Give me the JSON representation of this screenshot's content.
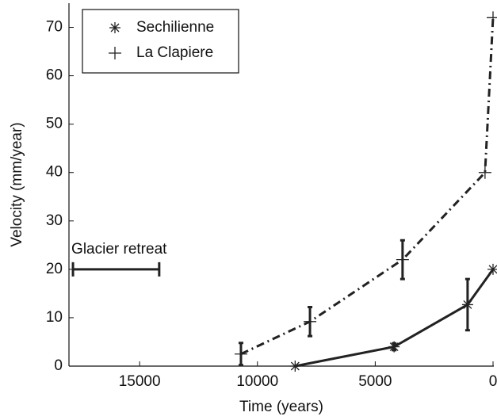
{
  "chart_data": {
    "type": "line",
    "x_label": "Time (years)",
    "y_label": "Velocity (mm/year)",
    "xlim": [
      18000,
      0
    ],
    "ylim": [
      0,
      75
    ],
    "xticks": [
      15000,
      10000,
      5000,
      0
    ],
    "yticks": [
      0,
      10,
      20,
      30,
      40,
      50,
      60,
      70
    ],
    "legend": "upper left",
    "series": [
      {
        "name": "Sechilienne",
        "color": "#222222",
        "linestyle": "solid",
        "marker": "asterisk",
        "x": [
          8400,
          4200,
          1080,
          0
        ],
        "values": [
          0,
          4,
          12.7,
          20
        ],
        "errors": [
          null,
          0.7,
          5.3,
          null
        ]
      },
      {
        "name": "La Clapiere",
        "color": "#222222",
        "linestyle": "dashdot",
        "marker": "plus",
        "x": [
          10700,
          7770,
          3840,
          340,
          0
        ],
        "values": [
          2.5,
          9.2,
          22,
          40,
          72
        ],
        "errors": [
          2.3,
          3,
          4,
          null,
          null
        ]
      }
    ],
    "annotations": [
      {
        "text": "Glacier retreat",
        "start": 17830,
        "end": 14170,
        "y": 20
      }
    ]
  }
}
